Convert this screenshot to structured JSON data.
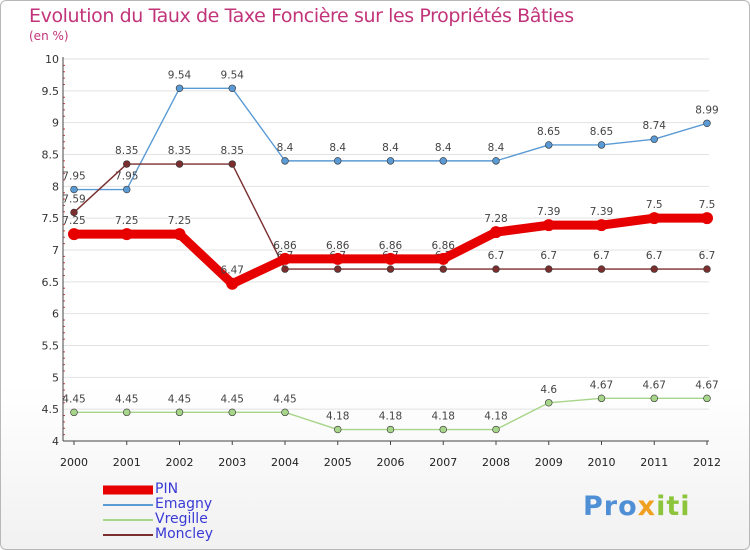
{
  "title": "Evolution du Taux de Taxe Foncière sur les Propriétés Bâties",
  "subtitle": "(en %)",
  "logo": {
    "text": "Proxiti",
    "colors": [
      "#4f8fd6",
      "#f0a020",
      "#8cc43c"
    ]
  },
  "chart_data": {
    "type": "line",
    "x": [
      2000,
      2001,
      2002,
      2003,
      2004,
      2005,
      2006,
      2007,
      2008,
      2009,
      2010,
      2011,
      2012
    ],
    "yticks": [
      "4",
      "4.5",
      "5",
      "5.5",
      "6",
      "6.5",
      "7",
      "7.5",
      "8",
      "8.5",
      "9",
      "9.5",
      "10"
    ],
    "ylim": [
      4,
      10
    ],
    "series": [
      {
        "name": "Emagny",
        "color": "#5b9bd5",
        "values": [
          7.95,
          7.95,
          9.54,
          9.54,
          8.4,
          8.4,
          8.4,
          8.4,
          8.4,
          8.65,
          8.65,
          8.74,
          8.99
        ],
        "labels": [
          "7.95",
          "7.95",
          "9.54",
          "9.54",
          "8.4",
          "8.4",
          "8.4",
          "8.4",
          "8.4",
          "8.65",
          "8.65",
          "8.74",
          "8.99"
        ]
      },
      {
        "name": "Moncley",
        "color": "#7a2e2e",
        "values": [
          7.59,
          8.35,
          8.35,
          8.35,
          6.7,
          6.7,
          6.7,
          6.7,
          6.7,
          6.7,
          6.7,
          6.7,
          6.7
        ],
        "labels": [
          "7.59",
          "8.35",
          "8.35",
          "8.35",
          "6.7",
          "6.7",
          "6.7",
          "6.7",
          "6.7",
          "6.7",
          "6.7",
          "6.7",
          "6.7"
        ]
      },
      {
        "name": "Vregille",
        "color": "#a7d58a",
        "values": [
          4.45,
          4.45,
          4.45,
          4.45,
          4.45,
          4.18,
          4.18,
          4.18,
          4.18,
          4.6,
          4.67,
          4.67,
          4.67
        ],
        "labels": [
          "4.45",
          "4.45",
          "4.45",
          "4.45",
          "4.45",
          "4.18",
          "4.18",
          "4.18",
          "4.18",
          "4.6",
          "4.67",
          "4.67",
          "4.67"
        ]
      },
      {
        "name": "PIN",
        "color": "#e60000",
        "values": [
          7.25,
          7.25,
          7.25,
          6.47,
          6.86,
          6.86,
          6.86,
          6.86,
          7.28,
          7.39,
          7.39,
          7.5,
          7.5
        ],
        "labels": [
          "7.25",
          "7.25",
          "7.25",
          "6.47",
          "6.86",
          "6.86",
          "6.86",
          "6.86",
          "7.28",
          "7.39",
          "7.39",
          "7.5",
          "7.5"
        ]
      }
    ],
    "legend": [
      "PIN",
      "Emagny",
      "Vregille",
      "Moncley"
    ]
  }
}
